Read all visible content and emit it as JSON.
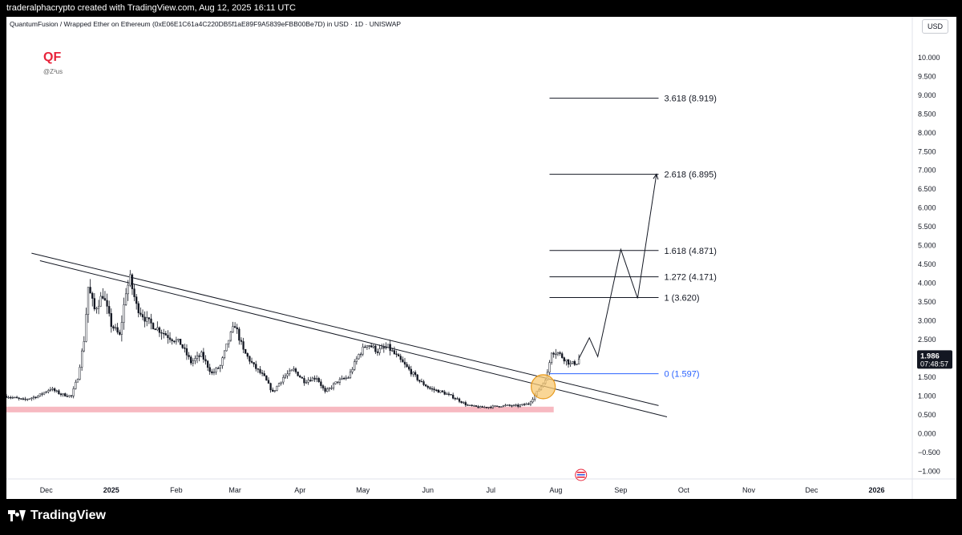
{
  "header": {
    "caption": "traderalphacrypto created with TradingView.com, Aug 12, 2025 16:11 UTC"
  },
  "chart_header": {
    "symbol_line": "QuantumFusion / Wrapped Ether on Ethereum (0xE06E1C61a4C220DB5f1aE89F9A5839eFBB00Be7D) in USD · 1D · UNISWAP",
    "currency_button": "USD"
  },
  "brand": {
    "logo_text": "QF",
    "handle": "@Z³us",
    "logo_color": "#e8233a"
  },
  "footer": {
    "brand": "TradingView"
  },
  "chart_data": {
    "type": "line",
    "title": "",
    "xlabel": "",
    "ylabel": "",
    "ylim": [
      -1.2,
      10.4
    ],
    "y_ticks": [
      "10.000",
      "9.500",
      "9.000",
      "8.500",
      "8.000",
      "7.500",
      "7.000",
      "6.500",
      "6.000",
      "5.500",
      "5.000",
      "4.500",
      "4.000",
      "3.500",
      "3.000",
      "2.500",
      "2.000",
      "1.500",
      "1.000",
      "0.500",
      "0.000",
      "−0.500",
      "−1.000"
    ],
    "y_tick_values": [
      10,
      9.5,
      9,
      8.5,
      8,
      7.5,
      7,
      6.5,
      6,
      5.5,
      5,
      4.5,
      4,
      3.5,
      3,
      2.5,
      2,
      1.5,
      1,
      0.5,
      0,
      -0.5,
      -1
    ],
    "x_range": [
      "2024-11-12",
      "2026-01-18"
    ],
    "x_ticks": [
      {
        "label": "Dec",
        "date": "2024-12-01",
        "bold": false
      },
      {
        "label": "2025",
        "date": "2025-01-01",
        "bold": true
      },
      {
        "label": "Feb",
        "date": "2025-02-01",
        "bold": false
      },
      {
        "label": "Mar",
        "date": "2025-03-01",
        "bold": false
      },
      {
        "label": "Apr",
        "date": "2025-04-01",
        "bold": false
      },
      {
        "label": "May",
        "date": "2025-05-01",
        "bold": false
      },
      {
        "label": "Jun",
        "date": "2025-06-01",
        "bold": false
      },
      {
        "label": "Jul",
        "date": "2025-07-01",
        "bold": false
      },
      {
        "label": "Aug",
        "date": "2025-08-01",
        "bold": false
      },
      {
        "label": "Sep",
        "date": "2025-09-01",
        "bold": false
      },
      {
        "label": "Oct",
        "date": "2025-10-01",
        "bold": false
      },
      {
        "label": "Nov",
        "date": "2025-11-01",
        "bold": false
      },
      {
        "label": "Dec",
        "date": "2025-12-01",
        "bold": false
      },
      {
        "label": "2026",
        "date": "2026-01-01",
        "bold": true
      }
    ],
    "price_path": [
      [
        "2024-11-12",
        1.0
      ],
      [
        "2024-11-20",
        0.9
      ],
      [
        "2024-11-27",
        1.0
      ],
      [
        "2024-12-03",
        1.2
      ],
      [
        "2024-12-08",
        1.05
      ],
      [
        "2024-12-13",
        1.0
      ],
      [
        "2024-12-16",
        1.5
      ],
      [
        "2024-12-19",
        2.5
      ],
      [
        "2024-12-21",
        3.9
      ],
      [
        "2024-12-24",
        3.3
      ],
      [
        "2024-12-28",
        3.7
      ],
      [
        "2025-01-01",
        2.9
      ],
      [
        "2025-01-05",
        2.6
      ],
      [
        "2025-01-08",
        3.8
      ],
      [
        "2025-01-10",
        4.1
      ],
      [
        "2025-01-13",
        3.4
      ],
      [
        "2025-01-18",
        3.0
      ],
      [
        "2025-01-23",
        2.8
      ],
      [
        "2025-01-28",
        2.6
      ],
      [
        "2025-02-03",
        2.4
      ],
      [
        "2025-02-08",
        1.9
      ],
      [
        "2025-02-13",
        2.1
      ],
      [
        "2025-02-18",
        1.6
      ],
      [
        "2025-02-22",
        1.8
      ],
      [
        "2025-02-26",
        2.5
      ],
      [
        "2025-03-01",
        2.9
      ],
      [
        "2025-03-05",
        2.2
      ],
      [
        "2025-03-10",
        1.8
      ],
      [
        "2025-03-15",
        1.5
      ],
      [
        "2025-03-19",
        1.1
      ],
      [
        "2025-03-24",
        1.5
      ],
      [
        "2025-03-29",
        1.7
      ],
      [
        "2025-04-03",
        1.4
      ],
      [
        "2025-04-09",
        1.5
      ],
      [
        "2025-04-13",
        1.1
      ],
      [
        "2025-04-19",
        1.4
      ],
      [
        "2025-04-24",
        1.5
      ],
      [
        "2025-04-29",
        2.1
      ],
      [
        "2025-05-03",
        2.4
      ],
      [
        "2025-05-08",
        2.2
      ],
      [
        "2025-05-13",
        2.3
      ],
      [
        "2025-05-18",
        2.0
      ],
      [
        "2025-05-23",
        1.7
      ],
      [
        "2025-05-28",
        1.4
      ],
      [
        "2025-06-02",
        1.2
      ],
      [
        "2025-06-08",
        1.1
      ],
      [
        "2025-06-14",
        0.95
      ],
      [
        "2025-06-20",
        0.75
      ],
      [
        "2025-06-26",
        0.7
      ],
      [
        "2025-07-02",
        0.72
      ],
      [
        "2025-07-08",
        0.75
      ],
      [
        "2025-07-14",
        0.74
      ],
      [
        "2025-07-19",
        0.8
      ],
      [
        "2025-07-23",
        1.1
      ],
      [
        "2025-07-26",
        1.35
      ],
      [
        "2025-07-28",
        1.6
      ],
      [
        "2025-07-30",
        2.2
      ],
      [
        "2025-08-02",
        2.15
      ],
      [
        "2025-08-05",
        2.0
      ],
      [
        "2025-08-08",
        1.85
      ],
      [
        "2025-08-11",
        1.9
      ],
      [
        "2025-08-12",
        1.986
      ]
    ],
    "current_price": {
      "label": "1.986",
      "countdown": "07:48:57",
      "value": 1.986
    },
    "fib_levels": [
      {
        "label": "3.618 (8.919)",
        "value": 8.919
      },
      {
        "label": "2.618 (6.895)",
        "value": 6.895
      },
      {
        "label": "1.618 (4.871)",
        "value": 4.871
      },
      {
        "label": "1.272 (4.171)",
        "value": 4.171
      },
      {
        "label": "1 (3.620)",
        "value": 3.62
      },
      {
        "label": "0 (1.597)",
        "value": 1.597,
        "highlight": true
      }
    ],
    "fib_range": [
      "2025-07-29",
      "2025-09-19"
    ],
    "projection_path": [
      [
        "2025-08-12",
        2.0
      ],
      [
        "2025-08-17",
        2.55
      ],
      [
        "2025-08-21",
        2.05
      ],
      [
        "2025-09-01",
        4.9
      ],
      [
        "2025-09-09",
        3.6
      ],
      [
        "2025-09-18",
        6.9
      ]
    ],
    "trendlines": [
      {
        "from": [
          "2024-11-24",
          4.8
        ],
        "to": [
          "2025-09-19",
          0.75
        ]
      },
      {
        "from": [
          "2024-11-28",
          4.6
        ],
        "to": [
          "2025-09-23",
          0.45
        ]
      }
    ],
    "support_zone": {
      "from": "2024-11-12",
      "to": "2025-07-31",
      "low": 0.57,
      "high": 0.72
    },
    "breakout_marker": {
      "date": "2025-07-26",
      "value": 1.25
    },
    "colors": {
      "candle": "#131722",
      "fib": "#131722",
      "fib_zero": "#2962ff",
      "support": "#f7b9c1",
      "breakout_fill": "#f7c873",
      "breakout_stroke": "#e89a1c"
    }
  }
}
